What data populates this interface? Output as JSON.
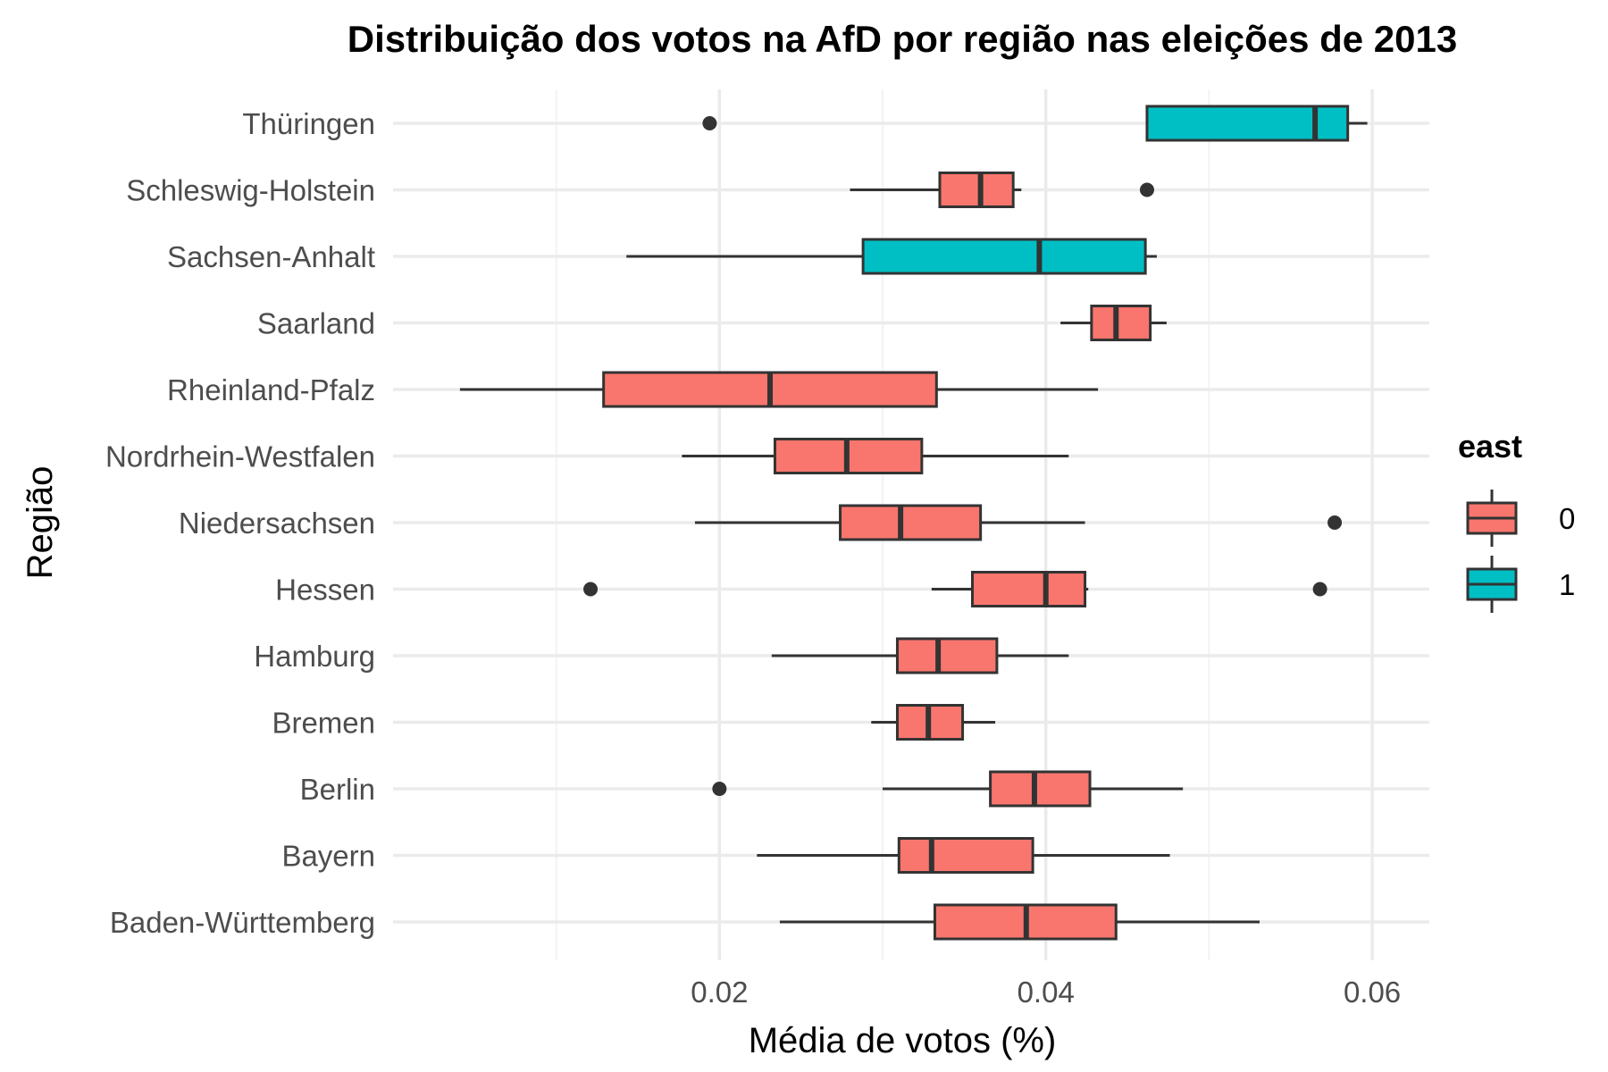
{
  "chart_data": {
    "type": "boxplot",
    "title": "Distribuição dos votos na AfD por região nas eleições de 2013",
    "xlabel": "Média de votos (%)",
    "ylabel": "Região",
    "xlim": [
      0.0,
      0.0635
    ],
    "x_ticks": [
      0.02,
      0.04,
      0.06
    ],
    "x_tick_labels": [
      "0.02",
      "0.04",
      "0.06"
    ],
    "grid": true,
    "legend": {
      "title": "east",
      "position": "right",
      "items": [
        {
          "label": "0",
          "color": "#F8766D"
        },
        {
          "label": "1",
          "color": "#00BFC4"
        }
      ]
    },
    "categories": [
      {
        "name": "Baden-Württemberg",
        "east": "0",
        "whisker_low": 0.0237,
        "q1": 0.0332,
        "median": 0.0388,
        "q3": 0.0443,
        "whisker_high": 0.0531,
        "outliers": []
      },
      {
        "name": "Bayern",
        "east": "0",
        "whisker_low": 0.0223,
        "q1": 0.031,
        "median": 0.033,
        "q3": 0.0392,
        "whisker_high": 0.0476,
        "outliers": []
      },
      {
        "name": "Berlin",
        "east": "0",
        "whisker_low": 0.03,
        "q1": 0.0366,
        "median": 0.0393,
        "q3": 0.0427,
        "whisker_high": 0.0484,
        "outliers": [
          0.02
        ]
      },
      {
        "name": "Bremen",
        "east": "0",
        "whisker_low": 0.0293,
        "q1": 0.0309,
        "median": 0.0328,
        "q3": 0.0349,
        "whisker_high": 0.0369,
        "outliers": []
      },
      {
        "name": "Hamburg",
        "east": "0",
        "whisker_low": 0.0232,
        "q1": 0.0309,
        "median": 0.0334,
        "q3": 0.037,
        "whisker_high": 0.0414,
        "outliers": []
      },
      {
        "name": "Hessen",
        "east": "0",
        "whisker_low": 0.033,
        "q1": 0.0355,
        "median": 0.04,
        "q3": 0.0424,
        "whisker_high": 0.0426,
        "outliers": [
          0.0121,
          0.0568
        ]
      },
      {
        "name": "Niedersachsen",
        "east": "0",
        "whisker_low": 0.0185,
        "q1": 0.0274,
        "median": 0.0311,
        "q3": 0.036,
        "whisker_high": 0.0424,
        "outliers": [
          0.0577
        ]
      },
      {
        "name": "Nordrhein-Westfalen",
        "east": "0",
        "whisker_low": 0.0177,
        "q1": 0.0234,
        "median": 0.0278,
        "q3": 0.0324,
        "whisker_high": 0.0414,
        "outliers": []
      },
      {
        "name": "Rheinland-Pfalz",
        "east": "0",
        "whisker_low": 0.0041,
        "q1": 0.0129,
        "median": 0.0231,
        "q3": 0.0333,
        "whisker_high": 0.0432,
        "outliers": []
      },
      {
        "name": "Saarland",
        "east": "0",
        "whisker_low": 0.0409,
        "q1": 0.0428,
        "median": 0.0443,
        "q3": 0.0464,
        "whisker_high": 0.0474,
        "outliers": []
      },
      {
        "name": "Sachsen-Anhalt",
        "east": "1",
        "whisker_low": 0.0143,
        "q1": 0.0288,
        "median": 0.0396,
        "q3": 0.0461,
        "whisker_high": 0.0468,
        "outliers": []
      },
      {
        "name": "Schleswig-Holstein",
        "east": "0",
        "whisker_low": 0.028,
        "q1": 0.0335,
        "median": 0.036,
        "q3": 0.038,
        "whisker_high": 0.0385,
        "outliers": [
          0.0462
        ]
      },
      {
        "name": "Thüringen",
        "east": "1",
        "whisker_low": 0.0462,
        "q1": 0.0462,
        "median": 0.0565,
        "q3": 0.0585,
        "whisker_high": 0.0597,
        "outliers": [
          0.0194
        ]
      }
    ]
  }
}
